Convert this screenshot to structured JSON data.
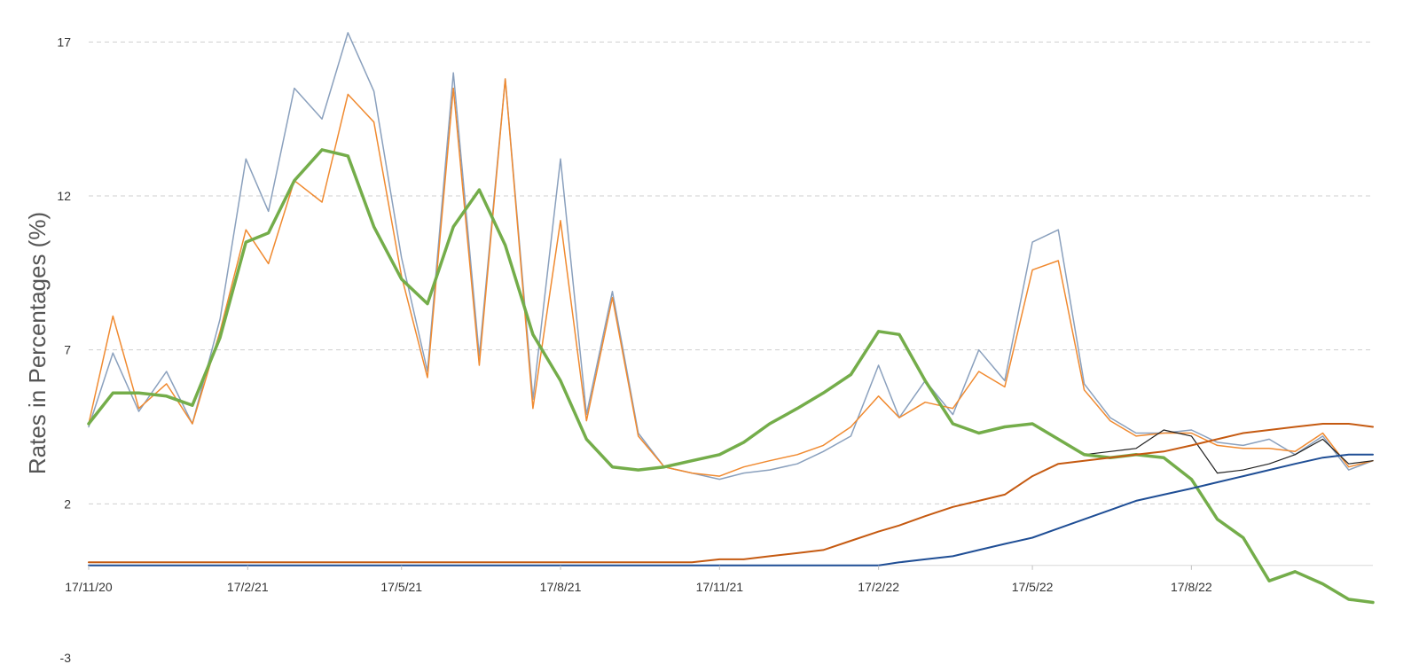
{
  "chart_data": {
    "type": "line",
    "title": "",
    "xlabel": "",
    "ylabel": "Rates in Percentages (%)",
    "x_ticks": [
      "17/11/20",
      "17/2/21",
      "17/5/21",
      "17/8/21",
      "17/11/21",
      "17/2/22",
      "17/5/22",
      "17/8/22"
    ],
    "y_ticks": [
      "-3",
      "2",
      "7",
      "12",
      "17"
    ],
    "xlim": [
      "2020-11-17",
      "2022-11-30"
    ],
    "ylim": [
      -3,
      17.5
    ],
    "x_axis_at_y": 0,
    "grid": "horizontal dashed",
    "legend": "none",
    "x_dates": [
      "2020-11-17",
      "2020-12-01",
      "2020-12-16",
      "2021-01-01",
      "2021-01-16",
      "2021-02-01",
      "2021-02-16",
      "2021-03-01",
      "2021-03-16",
      "2021-04-01",
      "2021-04-16",
      "2021-05-01",
      "2021-05-17",
      "2021-06-01",
      "2021-06-16",
      "2021-07-01",
      "2021-07-16",
      "2021-08-01",
      "2021-08-17",
      "2021-09-01",
      "2021-09-16",
      "2021-10-01",
      "2021-10-16",
      "2021-11-01",
      "2021-11-17",
      "2021-12-01",
      "2021-12-16",
      "2022-01-01",
      "2022-01-16",
      "2022-02-01",
      "2022-02-17",
      "2022-03-01",
      "2022-03-16",
      "2022-04-01",
      "2022-04-16",
      "2022-05-01",
      "2022-05-17",
      "2022-06-01",
      "2022-06-16",
      "2022-07-01",
      "2022-07-16",
      "2022-08-01",
      "2022-08-17",
      "2022-09-01",
      "2022-09-16",
      "2022-10-01",
      "2022-10-16",
      "2022-11-01",
      "2022-11-16",
      "2022-11-30"
    ],
    "series": [
      {
        "color": "#8aa0bd",
        "width": 1.5,
        "values": [
          4.5,
          6.9,
          5.0,
          6.3,
          4.6,
          8.0,
          13.2,
          11.5,
          15.5,
          14.5,
          17.3,
          15.4,
          10.0,
          6.3,
          16.0,
          6.8,
          15.8,
          5.4,
          13.2,
          4.9,
          8.9,
          4.3,
          3.2,
          3.0,
          2.8,
          3.0,
          3.1,
          3.3,
          3.7,
          4.2,
          6.5,
          4.8,
          6.0,
          4.9,
          7.0,
          6.0,
          10.5,
          10.9,
          5.9,
          4.8,
          4.3,
          4.3,
          4.4,
          4.0,
          3.9,
          4.1,
          3.6,
          4.2,
          3.1,
          3.4
        ]
      },
      {
        "color": "#f08a30",
        "width": 1.5,
        "values": [
          4.6,
          8.1,
          5.1,
          5.9,
          4.6,
          7.6,
          10.9,
          9.8,
          12.5,
          11.8,
          15.3,
          14.4,
          9.4,
          6.1,
          15.5,
          6.5,
          15.8,
          5.1,
          11.2,
          4.7,
          8.7,
          4.2,
          3.2,
          3.0,
          2.9,
          3.2,
          3.4,
          3.6,
          3.9,
          4.5,
          5.5,
          4.8,
          5.3,
          5.1,
          6.3,
          5.8,
          9.6,
          9.9,
          5.7,
          4.7,
          4.2,
          4.3,
          4.3,
          3.9,
          3.8,
          3.8,
          3.7,
          4.3,
          3.2,
          3.4
        ]
      },
      {
        "color": "#222222",
        "width": 1.2,
        "values": [
          4.6,
          5.6,
          5.6,
          5.5,
          5.2,
          7.4,
          10.5,
          10.8,
          12.5,
          13.5,
          13.3,
          11.0,
          9.3,
          8.5,
          11.0,
          12.2,
          10.4,
          7.5,
          6.0,
          4.1,
          3.2,
          3.1,
          3.2,
          3.4,
          3.6,
          4.0,
          4.6,
          5.1,
          5.6,
          6.2,
          7.6,
          7.5,
          6.0,
          4.6,
          4.3,
          4.5,
          4.6,
          4.1,
          3.6,
          3.7,
          3.8,
          4.4,
          4.2,
          3.0,
          3.1,
          3.3,
          3.6,
          4.1,
          3.3,
          3.4
        ]
      },
      {
        "color": "#74ad4a",
        "width": 3.5,
        "values": [
          4.6,
          5.6,
          5.6,
          5.5,
          5.2,
          7.4,
          10.5,
          10.8,
          12.5,
          13.5,
          13.3,
          11.0,
          9.3,
          8.5,
          11.0,
          12.2,
          10.4,
          7.5,
          6.0,
          4.1,
          3.2,
          3.1,
          3.2,
          3.4,
          3.6,
          4.0,
          4.6,
          5.1,
          5.6,
          6.2,
          7.6,
          7.5,
          6.0,
          4.6,
          4.3,
          4.5,
          4.6,
          4.1,
          3.6,
          3.5,
          3.6,
          3.5,
          2.8,
          1.5,
          0.9,
          -0.5,
          -0.2,
          -0.6,
          -1.1,
          -1.2
        ]
      },
      {
        "color": "#c55a11",
        "width": 2,
        "values": [
          0.1,
          0.1,
          0.1,
          0.1,
          0.1,
          0.1,
          0.1,
          0.1,
          0.1,
          0.1,
          0.1,
          0.1,
          0.1,
          0.1,
          0.1,
          0.1,
          0.1,
          0.1,
          0.1,
          0.1,
          0.1,
          0.1,
          0.1,
          0.1,
          0.2,
          0.2,
          0.3,
          0.4,
          0.5,
          0.8,
          1.1,
          1.3,
          1.6,
          1.9,
          2.1,
          2.3,
          2.9,
          3.3,
          3.4,
          3.5,
          3.6,
          3.7,
          3.9,
          4.1,
          4.3,
          4.4,
          4.5,
          4.6,
          4.6,
          4.5
        ]
      },
      {
        "color": "#1f4e95",
        "width": 2,
        "values": [
          0.0,
          0.0,
          0.0,
          0.0,
          0.0,
          0.0,
          0.0,
          0.0,
          0.0,
          0.0,
          0.0,
          0.0,
          0.0,
          0.0,
          0.0,
          0.0,
          0.0,
          0.0,
          0.0,
          0.0,
          0.0,
          0.0,
          0.0,
          0.0,
          0.0,
          0.0,
          0.0,
          0.0,
          0.0,
          0.0,
          0.0,
          0.1,
          0.2,
          0.3,
          0.5,
          0.7,
          0.9,
          1.2,
          1.5,
          1.8,
          2.1,
          2.3,
          2.5,
          2.7,
          2.9,
          3.1,
          3.3,
          3.5,
          3.6,
          3.6
        ]
      }
    ]
  }
}
